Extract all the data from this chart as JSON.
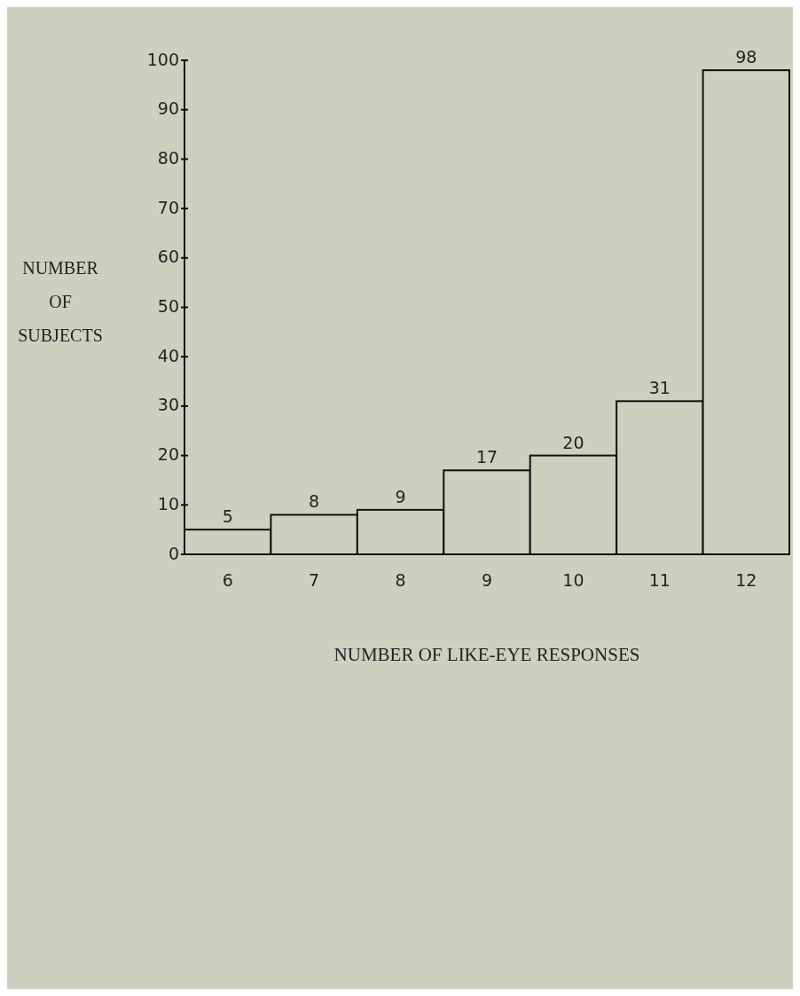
{
  "chart_data": {
    "type": "bar",
    "xlabel": "NUMBER OF LIKE-EYE RESPONSES",
    "ylabel": "NUMBER OF SUBJECTS",
    "categories": [
      "6",
      "7",
      "8",
      "9",
      "10",
      "11",
      "12"
    ],
    "values": [
      5,
      8,
      9,
      17,
      20,
      31,
      98
    ],
    "color": "#cfcfc0",
    "ylim": [
      0,
      100
    ],
    "yticks": [
      0,
      10,
      20,
      30,
      40,
      50,
      60,
      70,
      80,
      90,
      100
    ],
    "data_labels": true
  }
}
